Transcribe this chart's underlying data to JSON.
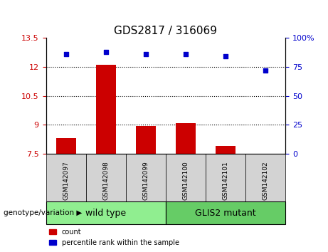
{
  "title": "GDS2817 / 316069",
  "samples": [
    "GSM142097",
    "GSM142098",
    "GSM142099",
    "GSM142100",
    "GSM142101",
    "GSM142102"
  ],
  "bar_values": [
    8.3,
    12.1,
    8.95,
    9.1,
    7.9,
    7.5
  ],
  "bar_color": "#cc0000",
  "bar_base": 7.5,
  "dot_values": [
    86,
    88,
    86,
    86,
    84,
    72
  ],
  "dot_color": "#0000cc",
  "ylim_left": [
    7.5,
    13.5
  ],
  "ylim_right": [
    0,
    100
  ],
  "yticks_left": [
    7.5,
    9.0,
    10.5,
    12.0,
    13.5
  ],
  "ytick_labels_left": [
    "7.5",
    "9",
    "10.5",
    "12",
    "13.5"
  ],
  "yticks_right": [
    0,
    25,
    50,
    75,
    100
  ],
  "ytick_labels_right": [
    "0",
    "25",
    "50",
    "75",
    "100%"
  ],
  "hlines": [
    9.0,
    10.5,
    12.0
  ],
  "left_tick_color": "#cc0000",
  "right_tick_color": "#0000cc",
  "legend_count_label": "count",
  "legend_pct_label": "percentile rank within the sample",
  "group_label_prefix": "genotype/variation",
  "wt_label": "wild type",
  "mut_label": "GLIS2 mutant",
  "wt_color": "#90EE90",
  "mut_color": "#66CC66",
  "sample_cell_color": "#d3d3d3",
  "title_fontsize": 11
}
